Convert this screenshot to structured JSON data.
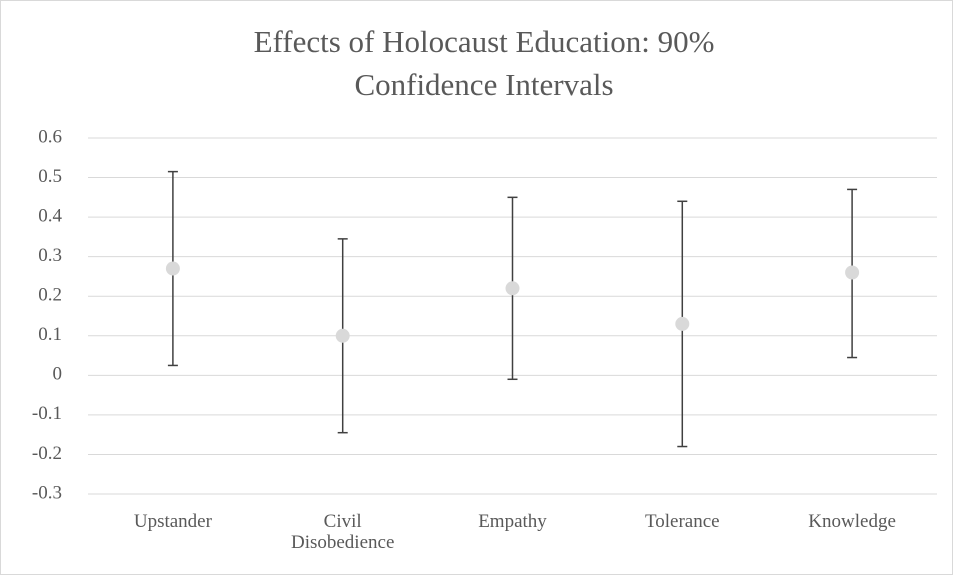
{
  "chart_data": {
    "type": "errorbar",
    "title": "Effects of Holocaust Education: 90% Confidence Intervals",
    "categories": [
      "Upstander",
      "Civil Disobedience",
      "Empathy",
      "Tolerance",
      "Knowledge"
    ],
    "values": [
      0.27,
      0.1,
      0.22,
      0.13,
      0.26
    ],
    "ci_low": [
      0.025,
      -0.145,
      -0.01,
      -0.18,
      0.045
    ],
    "ci_high": [
      0.515,
      0.345,
      0.45,
      0.44,
      0.47
    ],
    "color": "#d9d9d9",
    "error_color": "#404040",
    "ylim": [
      -0.3,
      0.6
    ],
    "yticks": [
      -0.3,
      -0.2,
      -0.1,
      0,
      0.1,
      0.2,
      0.3,
      0.4,
      0.5,
      0.6
    ],
    "grid": true
  }
}
